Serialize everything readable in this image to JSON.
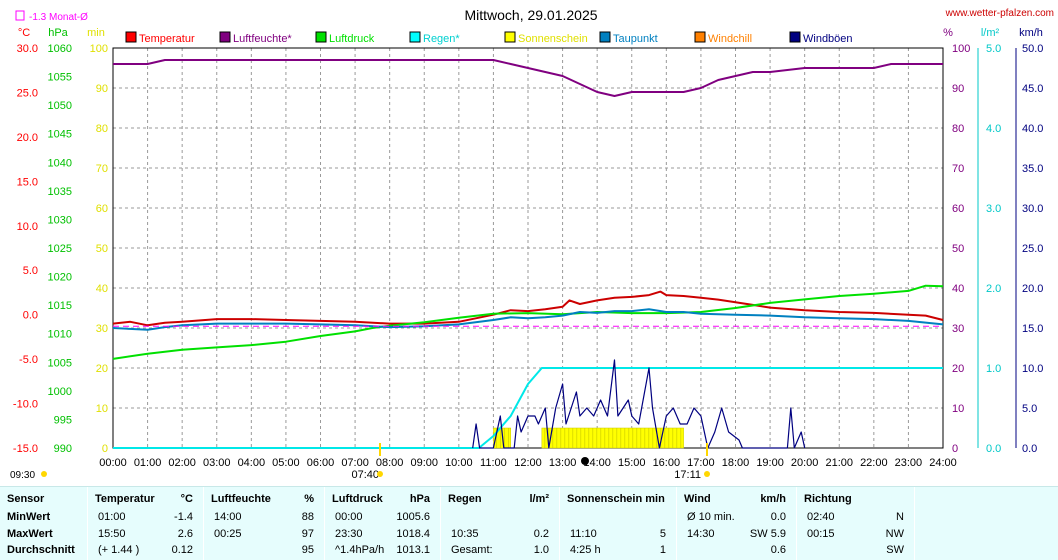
{
  "header": {
    "title": "Mittwoch, 29.01.2025",
    "site": "www.wetter-pfalzen.com",
    "monthly_avg_label": "-1.3 Monat-Ø",
    "unit_left_temp": "°C",
    "unit_left_hpa": "hPa",
    "unit_left_min": "min",
    "unit_right_pct": "%",
    "unit_right_lm2": "l/m²",
    "unit_right_kmh": "km/h",
    "sunrise": "07:40",
    "sunset": "17:11",
    "moon_time": "13:30",
    "top_left_time": "09:30"
  },
  "chart_data": {
    "type": "line",
    "title": "Mittwoch, 29.01.2025",
    "x_ticks": [
      "00:00",
      "01:00",
      "02:00",
      "03:00",
      "04:00",
      "05:00",
      "06:00",
      "07:00",
      "08:00",
      "09:00",
      "10:00",
      "11:00",
      "12:00",
      "13:00",
      "14:00",
      "15:00",
      "16:00",
      "17:00",
      "18:00",
      "19:00",
      "20:00",
      "21:00",
      "22:00",
      "23:00",
      "24:00"
    ],
    "axes": {
      "temp_c": {
        "range": [
          -15,
          30
        ],
        "ticks": [
          "30.0",
          "25.0",
          "20.0",
          "15.0",
          "10.0",
          "5.0",
          "0.0",
          "-5.0",
          "-10.0",
          "-15.0"
        ]
      },
      "pressure_hpa": {
        "range": [
          990,
          1060
        ],
        "ticks": [
          "1060",
          "1055",
          "1050",
          "1045",
          "1040",
          "1035",
          "1030",
          "1025",
          "1020",
          "1015",
          "1010",
          "1005",
          "1000",
          "995",
          "990"
        ]
      },
      "sun_min": {
        "range": [
          0,
          100
        ],
        "ticks": [
          "100",
          "90",
          "80",
          "70",
          "60",
          "50",
          "40",
          "30",
          "20",
          "10",
          "0"
        ]
      },
      "humidity_pct": {
        "range": [
          0,
          100
        ],
        "ticks": [
          "100",
          "90",
          "80",
          "70",
          "60",
          "50",
          "40",
          "30",
          "20",
          "10",
          "0"
        ]
      },
      "rain_lm2": {
        "range": [
          0,
          5
        ],
        "ticks": [
          "5.0",
          "4.0",
          "3.0",
          "2.0",
          "1.0",
          "0.0"
        ]
      },
      "wind_kmh": {
        "range": [
          0,
          50
        ],
        "ticks": [
          "50.0",
          "45.0",
          "40.0",
          "35.0",
          "30.0",
          "25.0",
          "20.0",
          "15.0",
          "10.0",
          "5.0",
          "0.0"
        ]
      }
    },
    "legend": [
      {
        "name": "Temperatur",
        "color": "#ff0000"
      },
      {
        "name": "Luftfeuchte*",
        "color": "#800080"
      },
      {
        "name": "Luftdruck",
        "color": "#00e000"
      },
      {
        "name": "Regen*",
        "color": "#00ffff"
      },
      {
        "name": "Sonnenschein",
        "color": "#ffff00"
      },
      {
        "name": "Taupunkt",
        "color": "#0080c0"
      },
      {
        "name": "Windchill",
        "color": "#ff8000"
      },
      {
        "name": "Windböen",
        "color": "#000080"
      }
    ],
    "series": [
      {
        "name": "Temperatur",
        "axis": "temp_c",
        "color": "#cc0000",
        "points": [
          [
            0,
            -1.0
          ],
          [
            0.5,
            -0.8
          ],
          [
            1,
            -1.2
          ],
          [
            1.5,
            -0.9
          ],
          [
            2,
            -0.8
          ],
          [
            3,
            -0.5
          ],
          [
            4,
            -0.5
          ],
          [
            5,
            -0.6
          ],
          [
            6,
            -0.7
          ],
          [
            7,
            -0.8
          ],
          [
            8,
            -1.0
          ],
          [
            9,
            -1.0
          ],
          [
            10,
            -0.8
          ],
          [
            11,
            0.0
          ],
          [
            11.5,
            0.5
          ],
          [
            12,
            0.4
          ],
          [
            12.5,
            0.6
          ],
          [
            13,
            0.9
          ],
          [
            13.2,
            1.6
          ],
          [
            13.5,
            1.2
          ],
          [
            14,
            1.6
          ],
          [
            14.5,
            1.9
          ],
          [
            15,
            2.0
          ],
          [
            15.5,
            2.2
          ],
          [
            15.83,
            2.6
          ],
          [
            16,
            2.2
          ],
          [
            16.5,
            2.1
          ],
          [
            17,
            1.9
          ],
          [
            17.5,
            1.7
          ],
          [
            18,
            1.4
          ],
          [
            18.5,
            1.1
          ],
          [
            19,
            0.8
          ],
          [
            20,
            0.5
          ],
          [
            21,
            0.3
          ],
          [
            22,
            0.2
          ],
          [
            23,
            0.0
          ],
          [
            23.5,
            -0.1
          ],
          [
            24,
            -0.6
          ]
        ]
      },
      {
        "name": "Luftfeuchte*",
        "axis": "humidity_pct",
        "color": "#800080",
        "points": [
          [
            0,
            96
          ],
          [
            1,
            96
          ],
          [
            1.5,
            97
          ],
          [
            2,
            97
          ],
          [
            4,
            97
          ],
          [
            6,
            97
          ],
          [
            8,
            97
          ],
          [
            10,
            97
          ],
          [
            11,
            97
          ],
          [
            11.5,
            96
          ],
          [
            12,
            95
          ],
          [
            12.5,
            94
          ],
          [
            13,
            93
          ],
          [
            13.5,
            91
          ],
          [
            14,
            89
          ],
          [
            14.5,
            88
          ],
          [
            15,
            89
          ],
          [
            15.5,
            89
          ],
          [
            16,
            89
          ],
          [
            16.5,
            89
          ],
          [
            17,
            90
          ],
          [
            17.5,
            92
          ],
          [
            18,
            93
          ],
          [
            18.5,
            94
          ],
          [
            19,
            94
          ],
          [
            20,
            95
          ],
          [
            21,
            95
          ],
          [
            22,
            95
          ],
          [
            22.5,
            96
          ],
          [
            23,
            96
          ],
          [
            24,
            96
          ]
        ]
      },
      {
        "name": "Luftdruck",
        "axis": "pressure_hpa",
        "color": "#00e000",
        "points": [
          [
            0,
            1005.6
          ],
          [
            1,
            1006.5
          ],
          [
            2,
            1007.2
          ],
          [
            3,
            1007.6
          ],
          [
            4,
            1008.0
          ],
          [
            5,
            1008.6
          ],
          [
            6,
            1009.6
          ],
          [
            7,
            1010.4
          ],
          [
            7.5,
            1011.0
          ],
          [
            8,
            1011.4
          ],
          [
            9,
            1012.0
          ],
          [
            10,
            1012.8
          ],
          [
            11,
            1013.5
          ],
          [
            12,
            1013.6
          ],
          [
            13,
            1013.4
          ],
          [
            14,
            1013.8
          ],
          [
            15,
            1013.6
          ],
          [
            16,
            1013.6
          ],
          [
            17,
            1013.8
          ],
          [
            18,
            1014.5
          ],
          [
            19,
            1015.4
          ],
          [
            20,
            1016.0
          ],
          [
            21,
            1016.6
          ],
          [
            22,
            1017.0
          ],
          [
            23,
            1017.5
          ],
          [
            23.5,
            1018.4
          ],
          [
            24,
            1018.3
          ]
        ]
      },
      {
        "name": "Taupunkt",
        "axis": "temp_c",
        "color": "#0080c0",
        "points": [
          [
            0,
            -1.5
          ],
          [
            1,
            -1.7
          ],
          [
            1.5,
            -1.4
          ],
          [
            2,
            -1.2
          ],
          [
            3,
            -1.0
          ],
          [
            4,
            -1.0
          ],
          [
            5,
            -1.0
          ],
          [
            6,
            -1.1
          ],
          [
            7,
            -1.2
          ],
          [
            8,
            -1.4
          ],
          [
            9,
            -1.3
          ],
          [
            10,
            -1.1
          ],
          [
            11,
            -0.6
          ],
          [
            11.5,
            -0.3
          ],
          [
            12,
            -0.4
          ],
          [
            12.5,
            -0.3
          ],
          [
            13,
            -0.1
          ],
          [
            13.5,
            0.3
          ],
          [
            14,
            0.2
          ],
          [
            14.5,
            0.4
          ],
          [
            15,
            0.4
          ],
          [
            15.5,
            0.6
          ],
          [
            16,
            0.3
          ],
          [
            16.5,
            0.3
          ],
          [
            17,
            0.1
          ],
          [
            18,
            0.0
          ],
          [
            19,
            -0.1
          ],
          [
            20,
            -0.3
          ],
          [
            21,
            -0.4
          ],
          [
            22,
            -0.5
          ],
          [
            23,
            -0.7
          ],
          [
            24,
            -1.1
          ]
        ]
      },
      {
        "name": "Regen*",
        "axis": "rain_lm2",
        "color": "#00e8e8",
        "points": [
          [
            0,
            0
          ],
          [
            10.58,
            0
          ],
          [
            11.0,
            0.15
          ],
          [
            11.5,
            0.4
          ],
          [
            12.0,
            0.8
          ],
          [
            12.4,
            1.0
          ],
          [
            12.6,
            1.0
          ],
          [
            24,
            1.0
          ]
        ]
      },
      {
        "name": "Windböen",
        "axis": "wind_kmh",
        "color": "#000080",
        "points": [
          [
            10.4,
            0
          ],
          [
            10.5,
            3
          ],
          [
            10.6,
            0
          ],
          [
            11.0,
            0
          ],
          [
            11.2,
            4
          ],
          [
            11.3,
            0
          ],
          [
            11.6,
            0
          ],
          [
            11.7,
            4
          ],
          [
            11.8,
            2
          ],
          [
            12.0,
            4
          ],
          [
            12.2,
            4
          ],
          [
            12.3,
            3
          ],
          [
            12.5,
            5
          ],
          [
            12.6,
            0
          ],
          [
            12.8,
            5
          ],
          [
            13.0,
            8
          ],
          [
            13.1,
            3
          ],
          [
            13.4,
            7
          ],
          [
            13.5,
            4
          ],
          [
            13.7,
            5
          ],
          [
            13.9,
            4
          ],
          [
            14.1,
            6
          ],
          [
            14.3,
            4
          ],
          [
            14.5,
            11
          ],
          [
            14.6,
            4
          ],
          [
            14.9,
            6
          ],
          [
            15.0,
            4
          ],
          [
            15.2,
            3
          ],
          [
            15.5,
            10
          ],
          [
            15.6,
            5
          ],
          [
            15.8,
            0
          ],
          [
            16.0,
            4
          ],
          [
            16.2,
            5
          ],
          [
            16.4,
            3
          ],
          [
            16.6,
            3
          ],
          [
            16.8,
            5
          ],
          [
            17.0,
            4
          ],
          [
            17.2,
            0
          ],
          [
            17.4,
            2
          ],
          [
            17.6,
            5
          ],
          [
            17.8,
            2
          ],
          [
            18.1,
            1
          ],
          [
            18.2,
            0
          ],
          [
            19.5,
            0
          ],
          [
            19.6,
            5
          ],
          [
            19.7,
            0
          ],
          [
            19.9,
            2
          ],
          [
            20.0,
            0
          ]
        ]
      },
      {
        "name": "Monat-Ø",
        "axis": "temp_c",
        "color": "#ff00ff",
        "dashed": true,
        "points": [
          [
            0,
            -1.3
          ],
          [
            24,
            -1.3
          ]
        ]
      }
    ],
    "sunshine_blocks": [
      [
        11.0,
        11.5
      ],
      [
        12.4,
        16.5
      ]
    ],
    "sunshine_height_min": 5,
    "grid": true
  },
  "stats": {
    "columns": [
      {
        "id": "sensor",
        "header": "Sensor",
        "rows": [
          "MinWert",
          "MaxWert",
          "Durchschnitt"
        ]
      },
      {
        "id": "temp",
        "header": "Temperatur",
        "unit": "°C",
        "times": [
          "01:00",
          "15:50",
          "(+ 1.44 )"
        ],
        "values": [
          "-1.4",
          "2.6",
          "0.12"
        ]
      },
      {
        "id": "humid",
        "header": "Luftfeuchte",
        "unit": "%",
        "times": [
          "14:00",
          "00:25",
          ""
        ],
        "values": [
          "88",
          "97",
          "95"
        ]
      },
      {
        "id": "press",
        "header": "Luftdruck",
        "unit": "hPa",
        "times": [
          "00:00",
          "23:30",
          "^1.4hPa/h"
        ],
        "values": [
          "1005.6",
          "1018.4",
          "1013.1"
        ]
      },
      {
        "id": "rain",
        "header": "Regen",
        "unit": "l/m²",
        "times": [
          "",
          "10:35",
          "Gesamt:"
        ],
        "values": [
          "",
          "0.2",
          "1.0"
        ]
      },
      {
        "id": "sun",
        "header": "Sonnenschein min",
        "unit": "",
        "times": [
          "",
          "11:10",
          "4:25 h"
        ],
        "values": [
          "",
          "5",
          "1"
        ]
      },
      {
        "id": "wind",
        "header": "Wind",
        "unit": "km/h",
        "times": [
          "Ø 10 min.",
          "14:30",
          ""
        ],
        "values": [
          "0.0",
          "SW 5.9",
          "0.6"
        ]
      },
      {
        "id": "dir",
        "header": "Richtung",
        "unit": "",
        "times": [
          "02:40",
          "00:15",
          ""
        ],
        "values": [
          "N",
          "NW",
          "SW"
        ]
      }
    ]
  }
}
